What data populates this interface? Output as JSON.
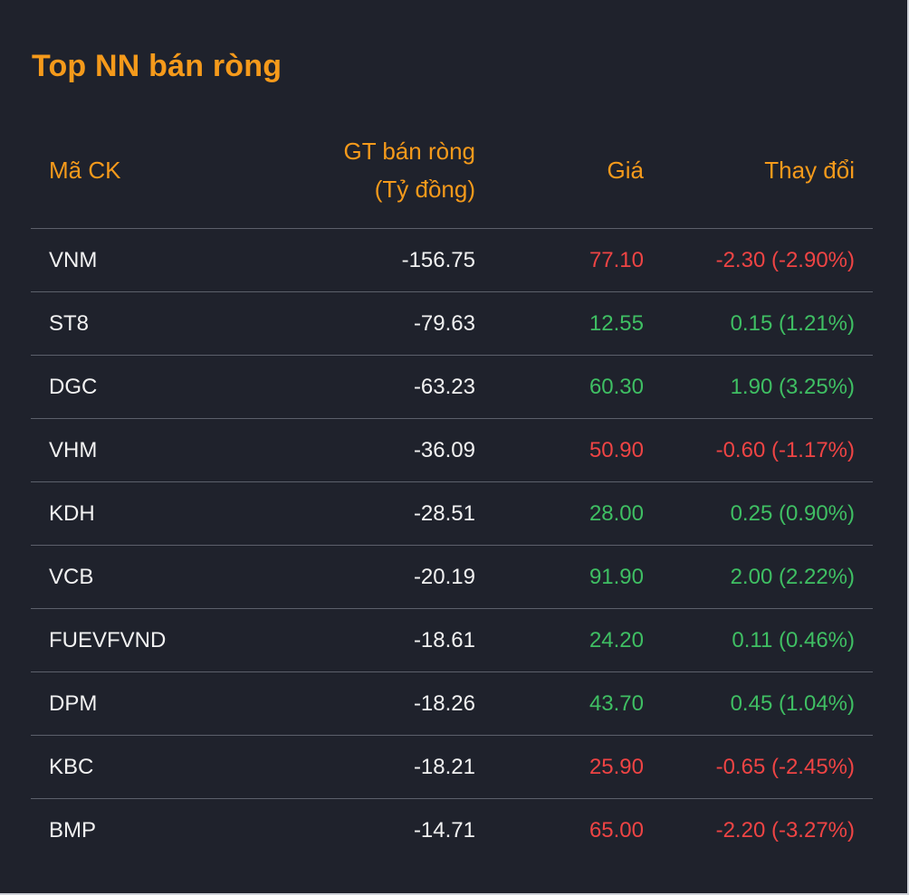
{
  "title": "Top NN bán ròng",
  "columns": {
    "code": "Mã CK",
    "gt_line1": "GT bán ròng",
    "gt_line2": "(Tỷ đồng)",
    "price": "Giá",
    "change": "Thay đổi"
  },
  "colors": {
    "accent": "#f59a1b",
    "up": "#3fbf63",
    "down": "#ef4444",
    "background": "#1f222c"
  },
  "rows": [
    {
      "code": "VNM",
      "net_sell": "-156.75",
      "price": "77.10",
      "change": "-2.30 (-2.90%)",
      "direction": "down"
    },
    {
      "code": "ST8",
      "net_sell": "-79.63",
      "price": "12.55",
      "change": "0.15 (1.21%)",
      "direction": "up"
    },
    {
      "code": "DGC",
      "net_sell": "-63.23",
      "price": "60.30",
      "change": "1.90 (3.25%)",
      "direction": "up"
    },
    {
      "code": "VHM",
      "net_sell": "-36.09",
      "price": "50.90",
      "change": "-0.60 (-1.17%)",
      "direction": "down"
    },
    {
      "code": "KDH",
      "net_sell": "-28.51",
      "price": "28.00",
      "change": "0.25 (0.90%)",
      "direction": "up"
    },
    {
      "code": "VCB",
      "net_sell": "-20.19",
      "price": "91.90",
      "change": "2.00 (2.22%)",
      "direction": "up"
    },
    {
      "code": "FUEVFVND",
      "net_sell": "-18.61",
      "price": "24.20",
      "change": "0.11 (0.46%)",
      "direction": "up"
    },
    {
      "code": "DPM",
      "net_sell": "-18.26",
      "price": "43.70",
      "change": "0.45 (1.04%)",
      "direction": "up"
    },
    {
      "code": "KBC",
      "net_sell": "-18.21",
      "price": "25.90",
      "change": "-0.65 (-2.45%)",
      "direction": "down"
    },
    {
      "code": "BMP",
      "net_sell": "-14.71",
      "price": "65.00",
      "change": "-2.20 (-3.27%)",
      "direction": "down"
    }
  ]
}
